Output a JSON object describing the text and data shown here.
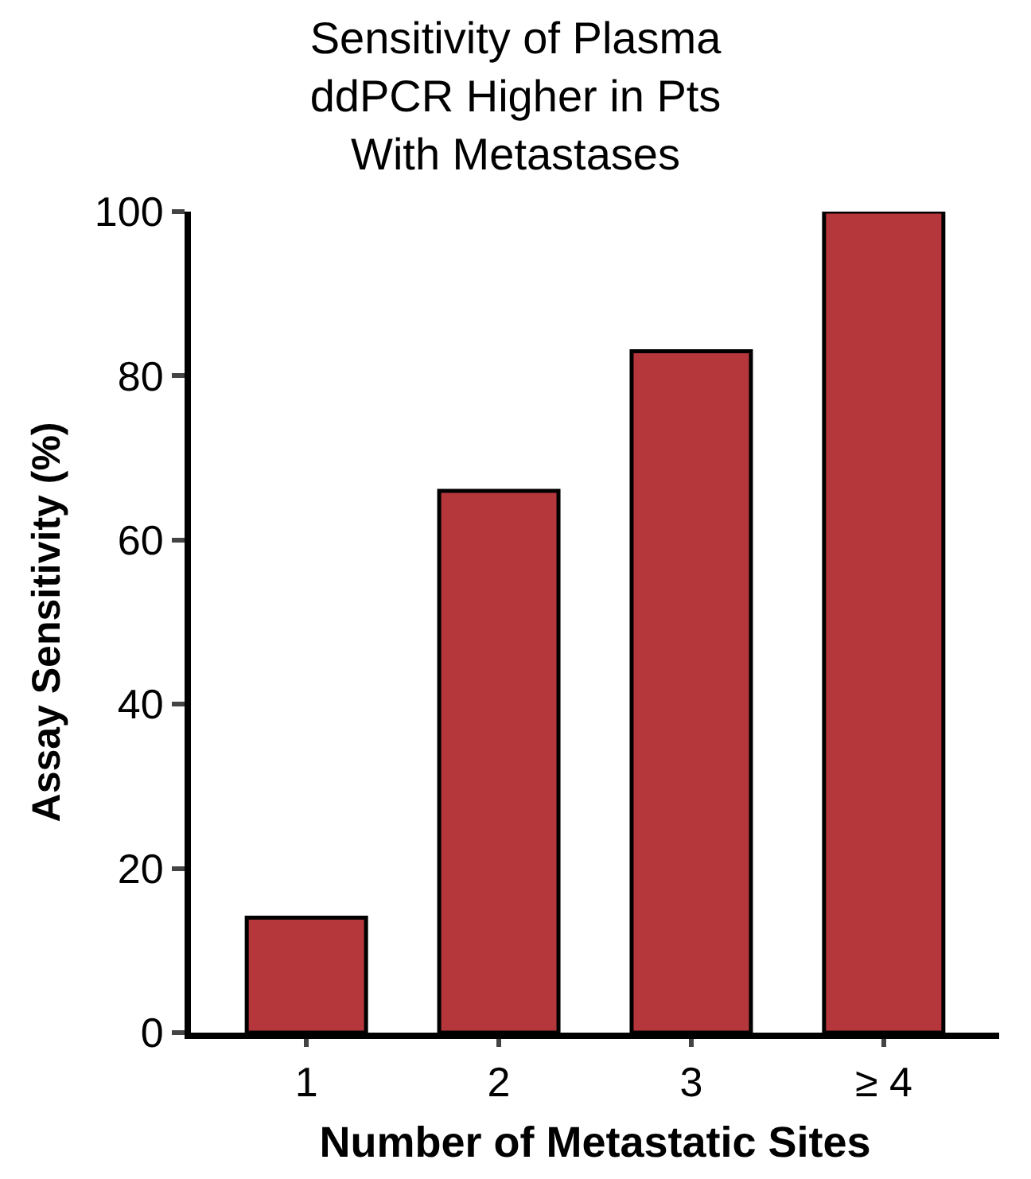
{
  "chart_data": {
    "type": "bar",
    "title": "Sensitivity of Plasma\nddPCR Higher in Pts\nWith Metastases",
    "xlabel": "Number of Metastatic Sites",
    "ylabel": "Assay Sensitivity (%)",
    "categories": [
      "1",
      "2",
      "3",
      "≥ 4"
    ],
    "series": [
      {
        "color": "#b5373c",
        "values": [
          14,
          66,
          83,
          100
        ]
      }
    ],
    "ylim": [
      0,
      100
    ],
    "yticks": [
      0,
      20,
      40,
      60,
      80,
      100
    ]
  }
}
